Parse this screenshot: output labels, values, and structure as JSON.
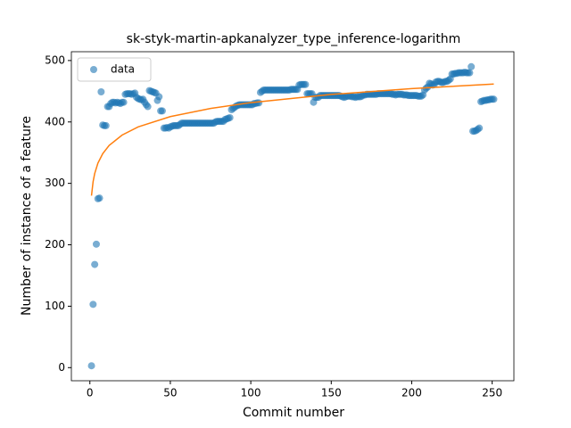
{
  "chart_data": {
    "type": "scatter",
    "title": "sk-styk-martin-apkanalyzer_type_inference-logarithm",
    "xlabel": "Commit number",
    "ylabel": "Number of instance of a feature",
    "xlim": [
      -11.5,
      263.5
    ],
    "xticks": [
      0,
      50,
      100,
      150,
      200,
      250
    ],
    "ylim": [
      -21.35,
      514.35
    ],
    "yticks": [
      0,
      100,
      200,
      300,
      400,
      500
    ],
    "legend": "upper left",
    "series": [
      {
        "name": "data",
        "color": "#1f77b4",
        "kind": "scatter",
        "x": [
          1,
          2,
          3,
          4,
          5,
          6,
          7,
          8,
          9,
          10,
          11,
          12,
          13,
          14,
          15,
          16,
          17,
          18,
          19,
          20,
          21,
          22,
          23,
          24,
          25,
          26,
          27,
          28,
          29,
          30,
          31,
          32,
          33,
          34,
          35,
          36,
          37,
          38,
          39,
          40,
          41,
          42,
          43,
          44,
          45,
          46,
          47,
          48,
          49,
          50,
          51,
          52,
          53,
          54,
          55,
          56,
          57,
          58,
          59,
          60,
          61,
          62,
          63,
          64,
          65,
          66,
          67,
          68,
          69,
          70,
          71,
          72,
          73,
          74,
          75,
          76,
          77,
          78,
          79,
          80,
          81,
          82,
          83,
          84,
          85,
          86,
          87,
          88,
          89,
          90,
          91,
          92,
          93,
          94,
          95,
          96,
          97,
          98,
          99,
          100,
          101,
          102,
          103,
          104,
          105,
          106,
          107,
          108,
          109,
          110,
          111,
          112,
          113,
          114,
          115,
          116,
          117,
          118,
          119,
          120,
          121,
          122,
          123,
          124,
          125,
          126,
          127,
          128,
          129,
          130,
          131,
          132,
          133,
          134,
          135,
          136,
          137,
          138,
          139,
          140,
          141,
          142,
          143,
          144,
          145,
          146,
          147,
          148,
          149,
          150,
          151,
          152,
          153,
          154,
          155,
          156,
          157,
          158,
          159,
          160,
          161,
          162,
          163,
          164,
          165,
          166,
          167,
          168,
          169,
          170,
          171,
          172,
          173,
          174,
          175,
          176,
          177,
          178,
          179,
          180,
          181,
          182,
          183,
          184,
          185,
          186,
          187,
          188,
          189,
          190,
          191,
          192,
          193,
          194,
          195,
          196,
          197,
          198,
          199,
          200,
          201,
          202,
          203,
          204,
          205,
          206,
          207,
          208,
          209,
          210,
          211,
          212,
          213,
          214,
          215,
          216,
          217,
          218,
          219,
          220,
          221,
          222,
          223,
          224,
          225,
          226,
          227,
          228,
          229,
          230,
          231,
          232,
          233,
          234,
          235,
          236,
          237,
          238,
          239,
          240,
          241,
          242,
          243,
          244,
          245,
          246,
          247,
          248,
          249,
          250,
          251
        ],
        "values": [
          3,
          103,
          168,
          201,
          275,
          276,
          449,
          395,
          394,
          394,
          425,
          425,
          430,
          432,
          432,
          431,
          432,
          431,
          430,
          432,
          432,
          445,
          446,
          446,
          446,
          445,
          446,
          447,
          440,
          438,
          437,
          436,
          437,
          432,
          428,
          425,
          451,
          450,
          449,
          448,
          447,
          435,
          441,
          418,
          418,
          390,
          390,
          391,
          390,
          392,
          393,
          394,
          394,
          394,
          394,
          396,
          398,
          398,
          398,
          398,
          398,
          398,
          398,
          398,
          398,
          398,
          398,
          398,
          398,
          398,
          398,
          398,
          398,
          398,
          398,
          398,
          398,
          400,
          401,
          401,
          401,
          401,
          401,
          404,
          405,
          406,
          407,
          420,
          422,
          424,
          426,
          427,
          428,
          428,
          428,
          428,
          428,
          428,
          428,
          428,
          428,
          430,
          430,
          431,
          431,
          448,
          450,
          452,
          452,
          452,
          452,
          452,
          452,
          452,
          452,
          452,
          452,
          452,
          452,
          452,
          452,
          452,
          452,
          452,
          453,
          453,
          453,
          453,
          453,
          460,
          461,
          461,
          461,
          461,
          446,
          446,
          446,
          446,
          432,
          440,
          440,
          440,
          443,
          443,
          443,
          443,
          443,
          443,
          443,
          443,
          443,
          443,
          443,
          443,
          443,
          442,
          441,
          440,
          441,
          442,
          442,
          442,
          441,
          441,
          440,
          441,
          441,
          441,
          442,
          444,
          444,
          445,
          445,
          445,
          445,
          445,
          445,
          445,
          446,
          446,
          446,
          446,
          446,
          446,
          446,
          446,
          446,
          445,
          445,
          444,
          445,
          445,
          445,
          445,
          444,
          444,
          444,
          443,
          443,
          443,
          443,
          443,
          443,
          442,
          442,
          442,
          444,
          452,
          455,
          457,
          463,
          462,
          460,
          461,
          465,
          466,
          466,
          465,
          464,
          465,
          466,
          466,
          468,
          470,
          478,
          478,
          479,
          479,
          480,
          480,
          480,
          480,
          481,
          480,
          480,
          480,
          490,
          385,
          385,
          386,
          388,
          390,
          433,
          434,
          435,
          435,
          436,
          436,
          437,
          437,
          437
        ]
      },
      {
        "color": "#ff7f0e",
        "kind": "line",
        "x": [
          1,
          2,
          3,
          5,
          8,
          12,
          20,
          30,
          50,
          75,
          100,
          150,
          200,
          251
        ],
        "values": [
          280,
          302.8,
          316.1,
          333,
          348.4,
          361.8,
          378.6,
          391.9,
          408.7,
          422,
          431.5,
          444.8,
          454.3,
          461.8
        ]
      }
    ]
  }
}
